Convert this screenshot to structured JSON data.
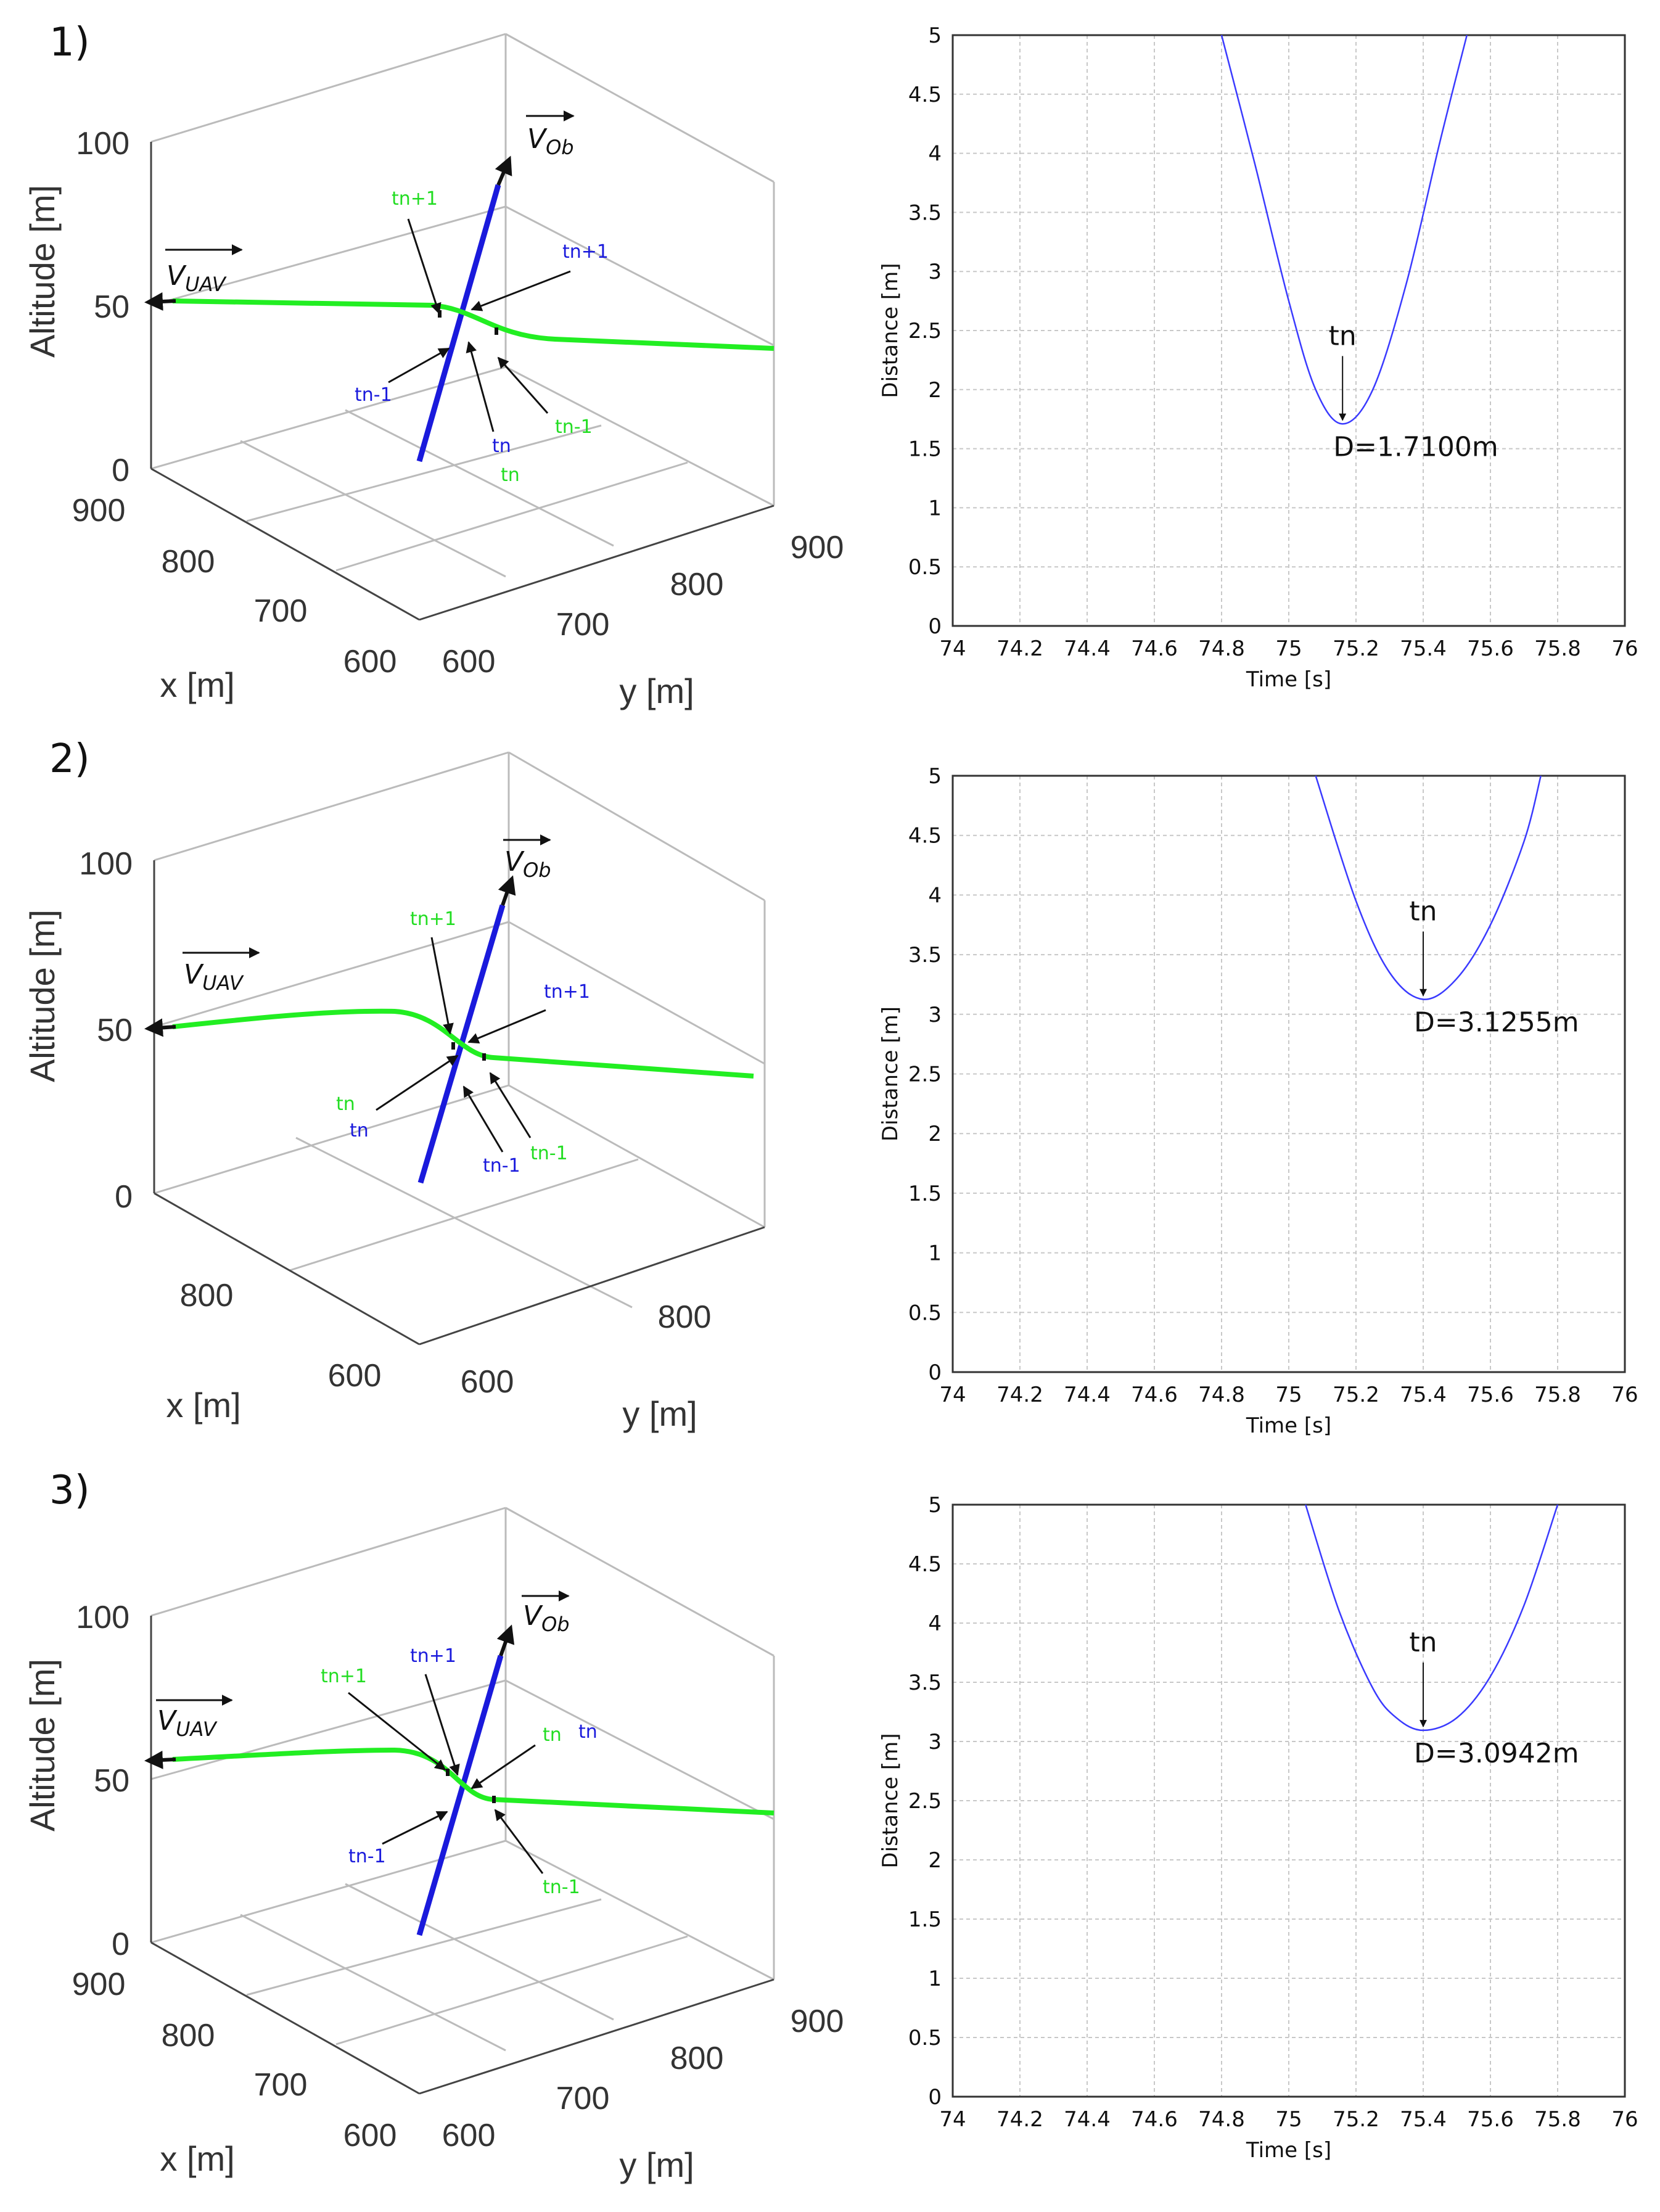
{
  "panels": [
    {
      "label": "1)",
      "scene3d": {
        "zlabel": "Altitude [m]",
        "xlabel": "x [m]",
        "ylabel": "y [m]",
        "zticks": [
          "100",
          "50",
          "0"
        ],
        "xticks": [
          "900",
          "800",
          "700",
          "600"
        ],
        "yticks": [
          "600",
          "700",
          "800",
          "900"
        ],
        "vec_uav": "V",
        "vec_uav_sub": "UAV",
        "vec_ob": "V",
        "vec_ob_sub": "Ob",
        "annotations": {
          "green_tn1": "tn+1",
          "blue_tn1": "tn+1",
          "blue_tnm1": "tn-1",
          "green_tnm1": "tn-1",
          "blue_tn": "tn",
          "green_tn": "tn"
        }
      }
    },
    {
      "label": "2)",
      "scene3d": {
        "zlabel": "Altitude [m]",
        "xlabel": "x [m]",
        "ylabel": "y [m]",
        "zticks": [
          "100",
          "50",
          "0"
        ],
        "xticks": [
          "800",
          "600"
        ],
        "yticks": [
          "600",
          "800"
        ],
        "vec_uav": "V",
        "vec_uav_sub": "UAV",
        "vec_ob": "V",
        "vec_ob_sub": "Ob",
        "annotations": {
          "green_tn1": "tn+1",
          "blue_tn1": "tn+1",
          "green_tn": "tn",
          "blue_tn": "tn",
          "blue_tnm1": "tn-1",
          "green_tnm1": "tn-1"
        }
      }
    },
    {
      "label": "3)",
      "scene3d": {
        "zlabel": "Altitude [m]",
        "xlabel": "x [m]",
        "ylabel": "y [m]",
        "zticks": [
          "100",
          "50",
          "0"
        ],
        "xticks": [
          "900",
          "800",
          "700",
          "600"
        ],
        "yticks": [
          "600",
          "700",
          "800",
          "900"
        ],
        "vec_uav": "V",
        "vec_uav_sub": "UAV",
        "vec_ob": "V",
        "vec_ob_sub": "Ob",
        "annotations": {
          "green_tn1": "tn+1",
          "blue_tn1": "tn+1",
          "green_tn": "tn",
          "blue_tn": "tn",
          "blue_tnm1": "tn-1",
          "green_tnm1": "tn-1"
        }
      }
    }
  ],
  "colors": {
    "uav_path": "#22ee22",
    "obstacle_path": "#1a1adc",
    "distance_curve": "#3a3aff",
    "grid": "#c8c8c8"
  },
  "chart_data": [
    {
      "type": "line",
      "xlabel": "Time [s]",
      "ylabel": "Distance [m]",
      "xlim": [
        74,
        76
      ],
      "ylim": [
        0,
        5
      ],
      "xticks": [
        "74",
        "74.2",
        "74.4",
        "74.6",
        "74.8",
        "75",
        "75.2",
        "75.4",
        "75.6",
        "75.8",
        "76"
      ],
      "yticks": [
        "0",
        "0.5",
        "1",
        "1.5",
        "2",
        "2.5",
        "3",
        "3.5",
        "4",
        "4.5",
        "5"
      ],
      "grid": true,
      "x": [
        74.8,
        74.9,
        75.0,
        75.08,
        75.16,
        75.25,
        75.35,
        75.45,
        75.53
      ],
      "y": [
        5.0,
        3.9,
        2.75,
        2.0,
        1.71,
        2.0,
        2.9,
        4.1,
        5.0
      ],
      "annotation": {
        "pointer": "tn",
        "text": "D=1.7100m",
        "x": 75.16,
        "y": 1.71
      }
    },
    {
      "type": "line",
      "xlabel": "Time [s]",
      "ylabel": "Distance [m]",
      "xlim": [
        74,
        76
      ],
      "ylim": [
        0,
        5
      ],
      "xticks": [
        "74",
        "74.2",
        "74.4",
        "74.6",
        "74.8",
        "75",
        "75.2",
        "75.4",
        "75.6",
        "75.8",
        "76"
      ],
      "yticks": [
        "0",
        "0.5",
        "1",
        "1.5",
        "2",
        "2.5",
        "3",
        "3.5",
        "4",
        "4.5",
        "5"
      ],
      "grid": true,
      "x": [
        75.08,
        75.2,
        75.3,
        75.4,
        75.5,
        75.6,
        75.7,
        75.75
      ],
      "y": [
        5.0,
        3.95,
        3.35,
        3.1255,
        3.3,
        3.75,
        4.45,
        5.0
      ],
      "annotation": {
        "pointer": "tn",
        "text": "D=3.1255m",
        "x": 75.4,
        "y": 3.1255
      }
    },
    {
      "type": "line",
      "xlabel": "Time [s]",
      "ylabel": "Distance [m]",
      "xlim": [
        74,
        76
      ],
      "ylim": [
        0,
        5
      ],
      "xticks": [
        "74",
        "74.2",
        "74.4",
        "74.6",
        "74.8",
        "75",
        "75.2",
        "75.4",
        "75.6",
        "75.8",
        "76"
      ],
      "yticks": [
        "0",
        "0.5",
        "1",
        "1.5",
        "2",
        "2.5",
        "3",
        "3.5",
        "4",
        "4.5",
        "5"
      ],
      "grid": true,
      "x": [
        75.05,
        75.15,
        75.25,
        75.32,
        75.4,
        75.5,
        75.6,
        75.7,
        75.8
      ],
      "y": [
        5.0,
        4.1,
        3.45,
        3.2,
        3.0942,
        3.2,
        3.55,
        4.15,
        5.0
      ],
      "annotation": {
        "pointer": "tn",
        "text": "D=3.0942m",
        "x": 75.4,
        "y": 3.0942
      }
    }
  ]
}
